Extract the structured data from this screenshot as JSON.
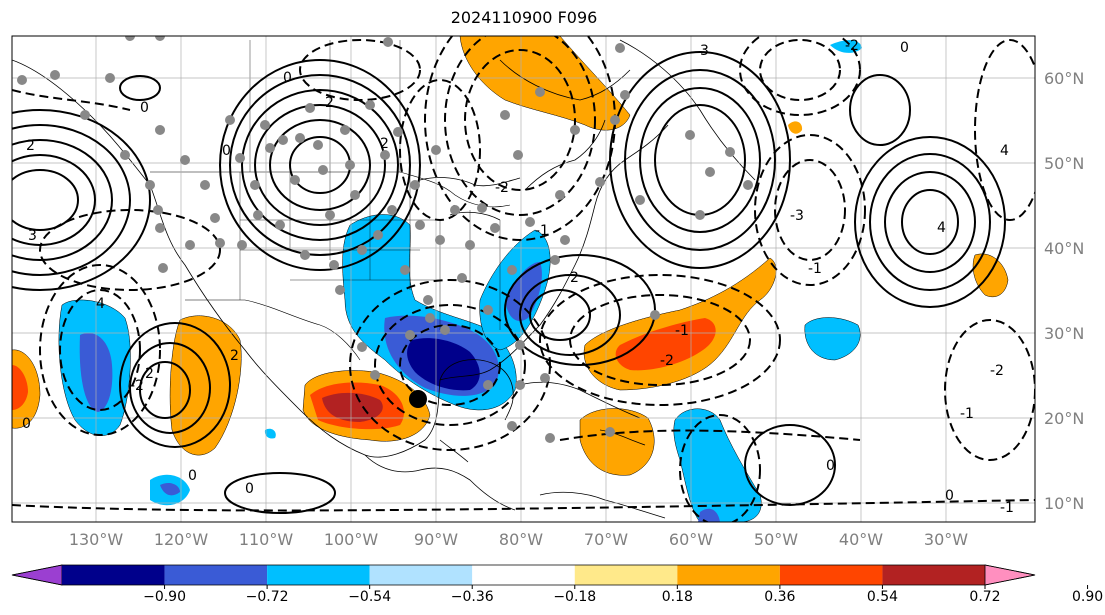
{
  "title": "2024110900 F096",
  "lon_labels": [
    "130°W",
    "120°W",
    "110°W",
    "100°W",
    "90°W",
    "80°W",
    "70°W",
    "60°W",
    "50°W",
    "40°W",
    "30°W"
  ],
  "lat_labels": [
    "60°N",
    "50°N",
    "40°N",
    "30°N",
    "20°N",
    "10°N"
  ],
  "colorbar": {
    "tick_labels": [
      "−0.90",
      "−0.72",
      "−0.54",
      "−0.36",
      "−0.18",
      "0.18",
      "0.36",
      "0.54",
      "0.72",
      "0.90"
    ],
    "colors": [
      "#9b3fd1",
      "#00008b",
      "#3a5bd6",
      "#00bfff",
      "#b0e2ff",
      "#ffffff",
      "#ffe98a",
      "#ffa500",
      "#ff4500",
      "#b22222",
      "#ff8fbf"
    ]
  },
  "contour_labels": {
    "zero": "0",
    "pos1": "1",
    "pos2": "2",
    "pos3": "3",
    "pos4": "4",
    "neg1": "-1",
    "neg2": "-2",
    "neg3": "-3"
  },
  "fill_colors": {
    "light_blue": "#00bfff",
    "mid_blue": "#3a5bd6",
    "dark_blue": "#00008b",
    "orange": "#ffa500",
    "red_orange": "#ff4500",
    "dark_red": "#b22222",
    "station_dots": "#888888"
  }
}
